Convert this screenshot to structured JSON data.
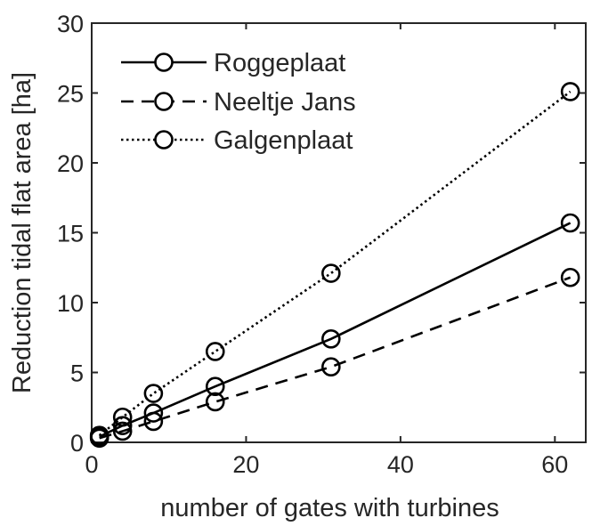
{
  "chart_data": {
    "type": "line",
    "title": "",
    "xlabel": "number of gates with turbines",
    "ylabel": "Reduction tidal flat area [ha]",
    "xlim": [
      0,
      64
    ],
    "ylim": [
      0,
      30
    ],
    "xticks": [
      0,
      20,
      40,
      60
    ],
    "xtick_labels": [
      "0",
      "20",
      "40",
      "60"
    ],
    "yticks": [
      0,
      5,
      10,
      15,
      20,
      25,
      30
    ],
    "ytick_labels": [
      "0",
      "5",
      "10",
      "15",
      "20",
      "25",
      "30"
    ],
    "grid": false,
    "legend_position": "top-left",
    "marker": "circle",
    "x": [
      1,
      4,
      8,
      16,
      31,
      62
    ],
    "series": [
      {
        "name": "Roggeplaat",
        "line_style": "solid",
        "color": "#000000",
        "values": [
          0.4,
          1.2,
          2.1,
          4.0,
          7.4,
          15.7
        ]
      },
      {
        "name": "Neeltje Jans",
        "line_style": "dashed",
        "color": "#000000",
        "values": [
          0.3,
          0.8,
          1.5,
          2.9,
          5.4,
          11.8
        ]
      },
      {
        "name": "Galgenplaat",
        "line_style": "dotted",
        "color": "#000000",
        "values": [
          0.5,
          1.8,
          3.5,
          6.5,
          12.1,
          25.1
        ]
      }
    ]
  }
}
